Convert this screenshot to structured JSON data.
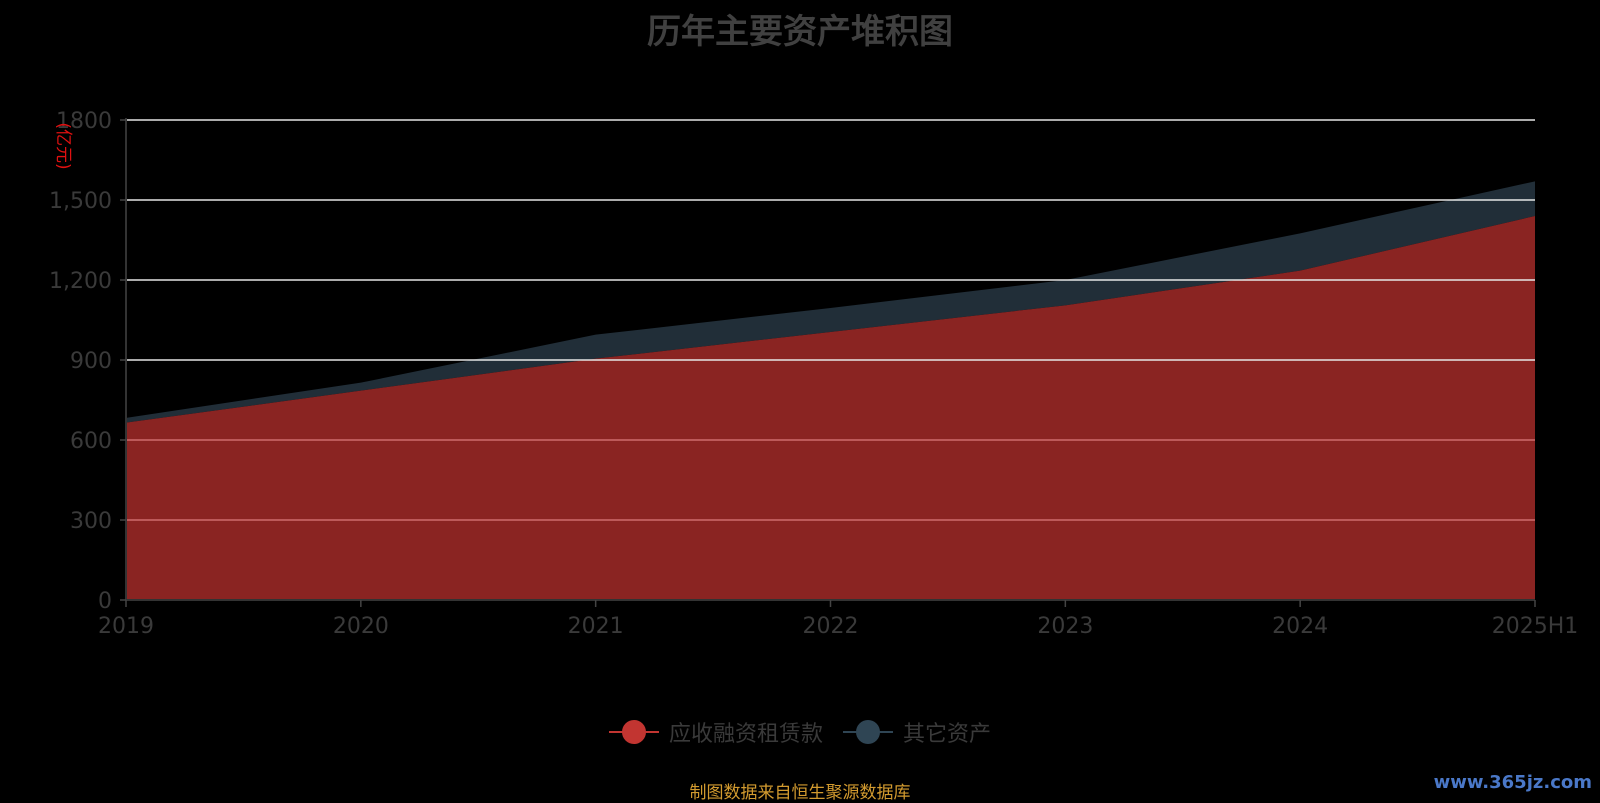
{
  "chart_data": {
    "type": "area",
    "stacked": true,
    "title": "历年主要资产堆积图",
    "unit_label": "(亿元)",
    "x": [
      "2019",
      "2020",
      "2021",
      "2022",
      "2023",
      "2024",
      "2025H1"
    ],
    "ylim": [
      0,
      1800
    ],
    "yticks": [
      0,
      300,
      600,
      900,
      1200,
      1500,
      1800
    ],
    "ytick_labels": [
      "0",
      "300",
      "600",
      "900",
      "1,200",
      "1,500",
      "1800"
    ],
    "grid": true,
    "legend_position": "bottom-center",
    "series": [
      {
        "name": "应收融资租赁款",
        "color": "#c23531",
        "fill": "#8a2422",
        "values": [
          665,
          785,
          905,
          1005,
          1105,
          1235,
          1440
        ]
      },
      {
        "name": "其它资产",
        "color": "#2f4554",
        "fill": "#212e38",
        "values": [
          18,
          30,
          90,
          90,
          95,
          140,
          130
        ]
      }
    ]
  },
  "footer": {
    "source": "制图数据来自恒生聚源数据库",
    "watermark": "www.365jz.com"
  }
}
